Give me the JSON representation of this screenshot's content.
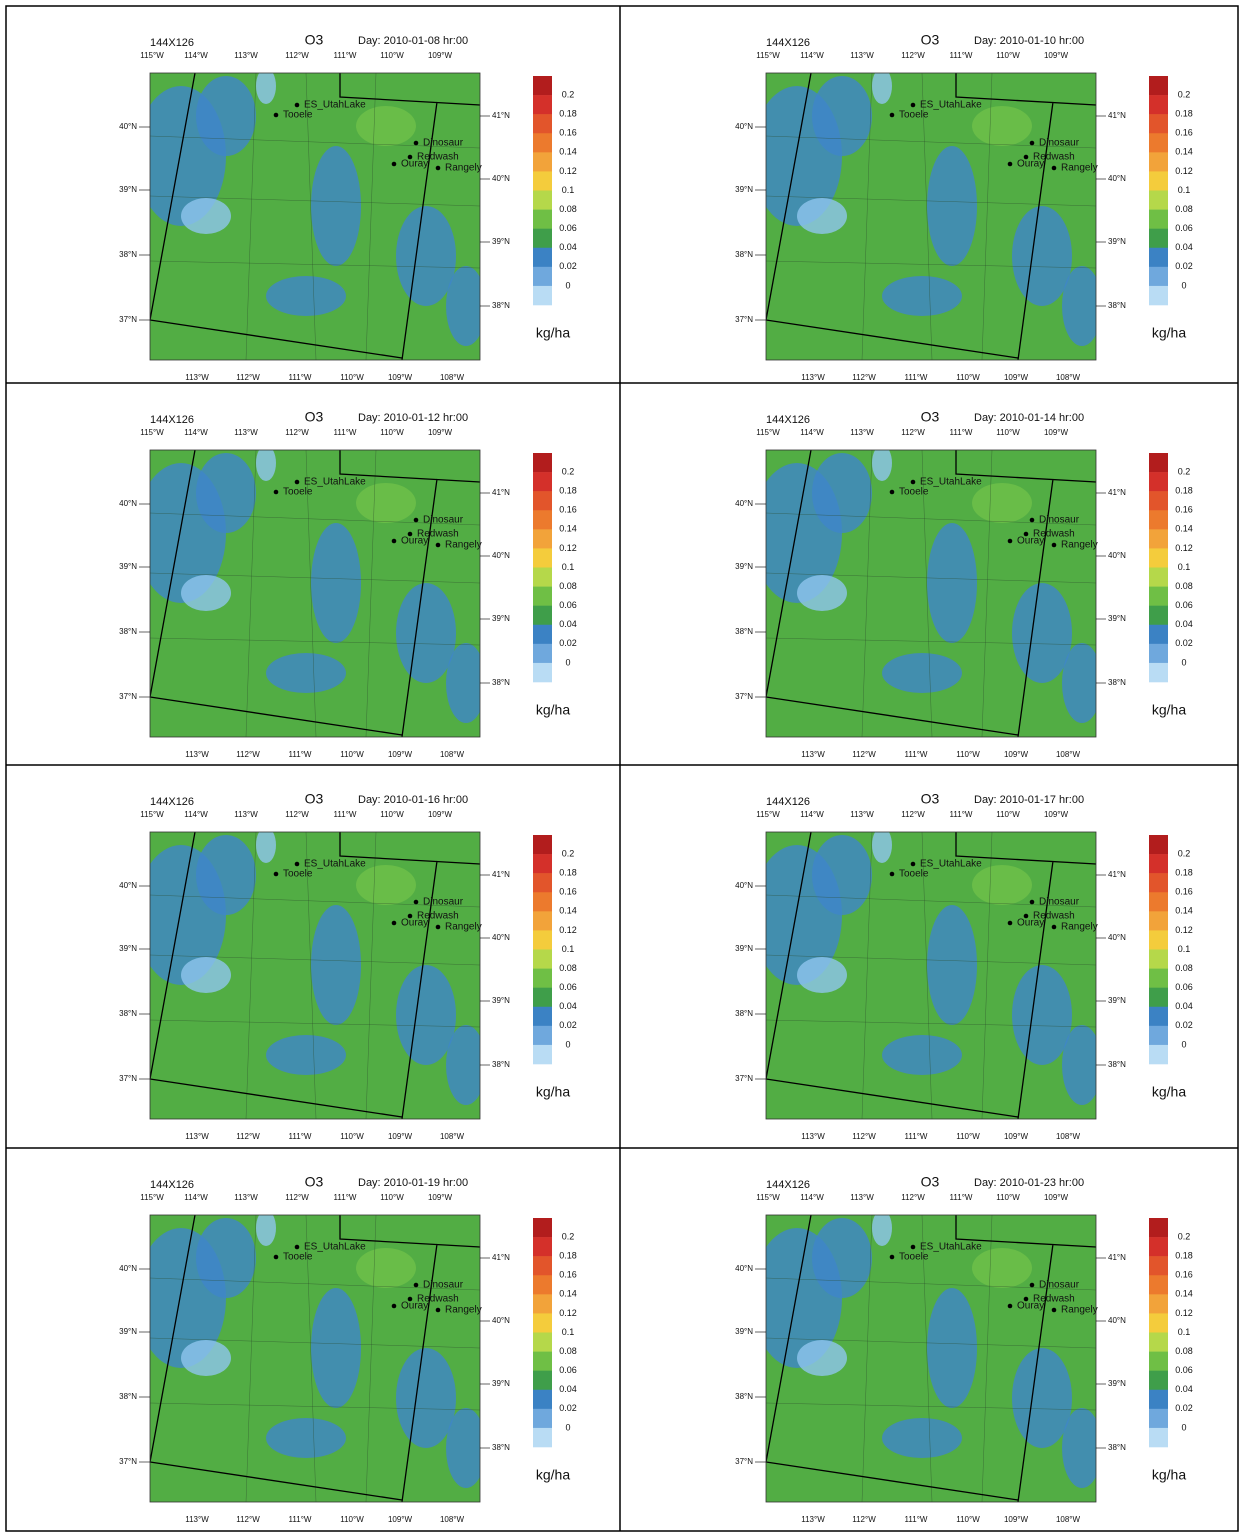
{
  "panels": [
    {
      "grid": "144X126",
      "variable": "O3",
      "time": "Day: 2010-01-08 hr:00"
    },
    {
      "grid": "144X126",
      "variable": "O3",
      "time": "Day: 2010-01-10 hr:00"
    },
    {
      "grid": "144X126",
      "variable": "O3",
      "time": "Day: 2010-01-12 hr:00"
    },
    {
      "grid": "144X126",
      "variable": "O3",
      "time": "Day: 2010-01-14 hr:00"
    },
    {
      "grid": "144X126",
      "variable": "O3",
      "time": "Day: 2010-01-16 hr:00"
    },
    {
      "grid": "144X126",
      "variable": "O3",
      "time": "Day: 2010-01-17 hr:00"
    },
    {
      "grid": "144X126",
      "variable": "O3",
      "time": "Day: 2010-01-19 hr:00"
    },
    {
      "grid": "144X126",
      "variable": "O3",
      "time": "Day: 2010-01-23 hr:00"
    }
  ],
  "map_axes": {
    "top_lon": [
      "115°W",
      "114°W",
      "113°W",
      "112°W",
      "111°W",
      "110°W",
      "109°W"
    ],
    "bottom_lon": [
      "113°W",
      "112°W",
      "111°W",
      "110°W",
      "109°W",
      "108°W"
    ],
    "left_lat": [
      "40°N",
      "39°N",
      "38°N",
      "37°N"
    ],
    "right_lat": [
      "41°N",
      "40°N",
      "39°N",
      "38°N"
    ]
  },
  "stations": [
    {
      "name": "ES_UtahLake"
    },
    {
      "name": "Tooele"
    },
    {
      "name": "Dinosaur"
    },
    {
      "name": "Redwash"
    },
    {
      "name": "Ouray"
    },
    {
      "name": "Rangely"
    }
  ],
  "colorbar": {
    "labels": [
      0.2,
      0.18,
      0.16,
      0.14,
      0.12,
      0.1,
      0.08,
      0.06,
      0.04,
      0.02,
      0
    ],
    "colors": [
      "#b21d1d",
      "#d4302a",
      "#e2552b",
      "#ec7a2d",
      "#f2a33a",
      "#f4cc3c",
      "#b5d84a",
      "#6fbf45",
      "#3f9e4a",
      "#3b82c4",
      "#6fa8dd",
      "#b9dcf4"
    ],
    "unit": "kg/ha"
  }
}
